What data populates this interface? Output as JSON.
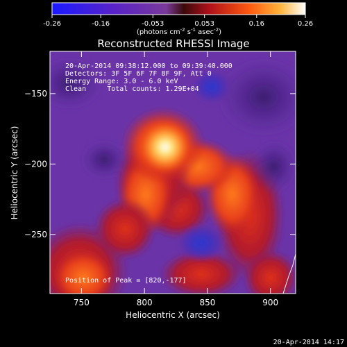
{
  "colorbar": {
    "tick_labels": [
      "-0.26",
      "-0.16",
      "-0.053",
      "0.053",
      "0.16",
      "0.26"
    ],
    "tick_values": [
      -0.26,
      -0.16,
      -0.053,
      0.053,
      0.16,
      0.26
    ],
    "range": [
      -0.26,
      0.26
    ],
    "units_prefix": "(photons cm",
    "units_exp1": "-2",
    "units_mid": " s",
    "units_exp2": "-1",
    "units_mid2": " asec",
    "units_exp3": "-2",
    "units_suffix": ")"
  },
  "title": "Reconstructed RHESSI Image",
  "info": {
    "time_range": "20-Apr-2014 09:38:12.000 to 09:39:40.000",
    "detectors": "Detectors: 3F 5F 6F 7F 8F 9F, Att 0",
    "energy": "Energy Range: 3.0 - 6.0 keV",
    "clean": "Clean     Total counts: 1.29E+04",
    "peak": "Position of Peak = [820,-177]"
  },
  "axes": {
    "xlabel": "Heliocentric X (arcsec)",
    "ylabel": "Heliocentric Y (arcsec)",
    "xlim": [
      725,
      920
    ],
    "ylim": [
      -292,
      -120
    ],
    "x_ticks": [
      750,
      800,
      850,
      900
    ],
    "x_tick_labels": [
      "750",
      "800",
      "850",
      "900"
    ],
    "y_ticks": [
      -150,
      -200,
      -250
    ],
    "y_tick_labels": [
      "−150",
      "−200",
      "−250"
    ]
  },
  "timestamp": "20-Apr-2014 14:17",
  "colors": {
    "background": "#000000",
    "colormap": [
      "#0000ff",
      "#5a2c9e",
      "#6a2f9e",
      "#b0203a",
      "#e83a14",
      "#ff8a1e",
      "#ffe07a",
      "#ffffff"
    ]
  }
}
